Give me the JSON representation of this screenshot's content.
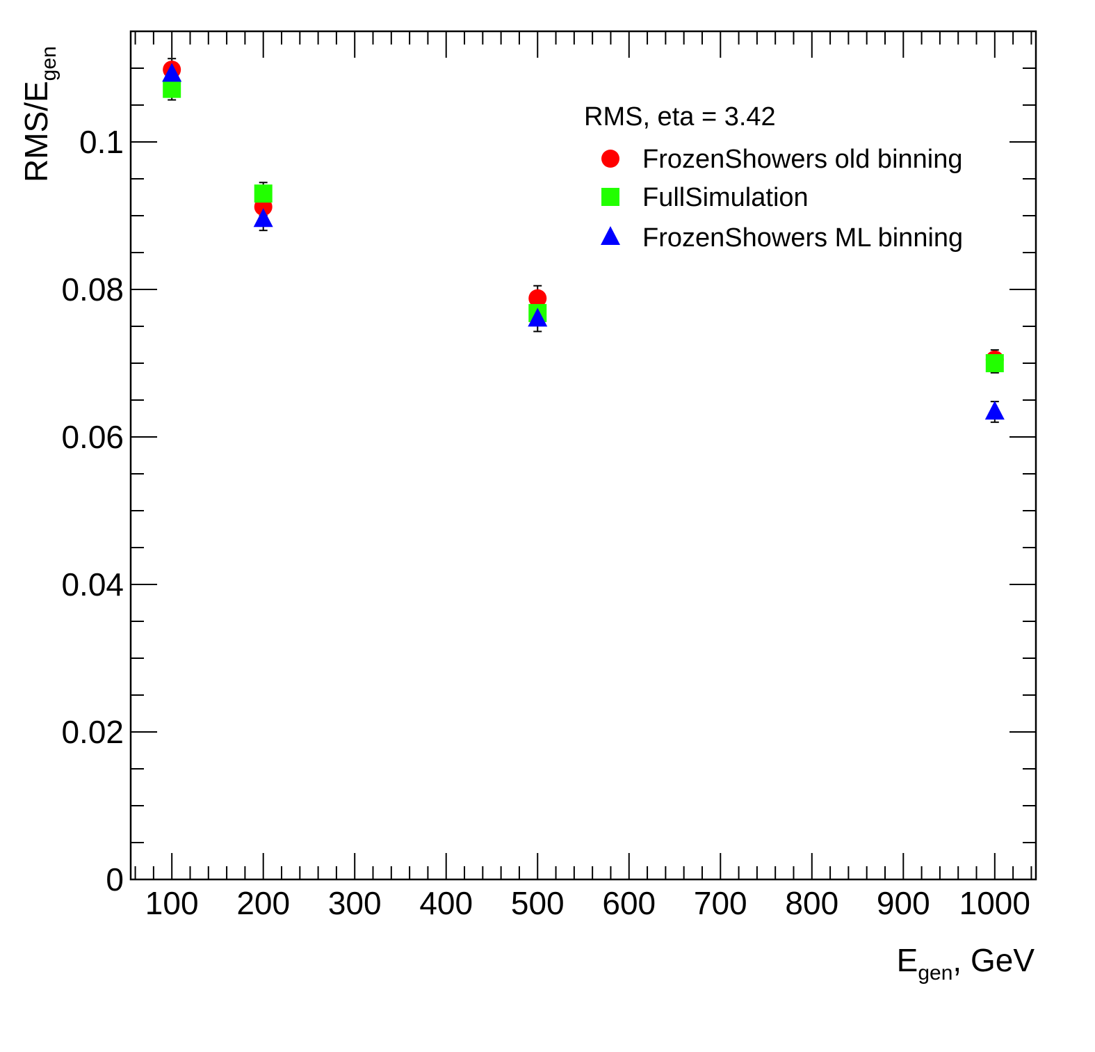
{
  "chart_data": {
    "type": "scatter",
    "xlabel": {
      "main": "E",
      "sub": "gen",
      "suffix": ", GeV"
    },
    "ylabel": {
      "main": "RMS/E",
      "sub": "gen"
    },
    "xlim": [
      55,
      1045
    ],
    "ylim": [
      0,
      0.115
    ],
    "x_ticks": [
      100,
      200,
      300,
      400,
      500,
      600,
      700,
      800,
      900,
      1000
    ],
    "x_tick_labels": [
      "100",
      "200",
      "300",
      "400",
      "500",
      "600",
      "700",
      "800",
      "900",
      "1000"
    ],
    "y_ticks": [
      0,
      0.02,
      0.04,
      0.06,
      0.08,
      0.1
    ],
    "y_tick_labels": [
      "0",
      "0.02",
      "0.04",
      "0.06",
      "0.08",
      "0.1"
    ],
    "grid": false,
    "legend": {
      "position": "top-right",
      "header": "RMS, eta = 3.42"
    },
    "series": [
      {
        "name": "FrozenShowers old binning",
        "marker": "circle",
        "color": "#ff0000",
        "x": [
          100,
          200,
          500,
          1000
        ],
        "y": [
          0.1098,
          0.0912,
          0.0788,
          0.0705
        ],
        "yerr": [
          0.0015,
          0.0012,
          0.0017,
          0.0013
        ]
      },
      {
        "name": "FullSimulation",
        "marker": "square",
        "color": "#22ff00",
        "x": [
          100,
          200,
          500,
          1000
        ],
        "y": [
          0.1072,
          0.093,
          0.0768,
          0.07
        ],
        "yerr": [
          0.0015,
          0.0015,
          0.0015,
          0.0013
        ]
      },
      {
        "name": "FrozenShowers ML binning",
        "marker": "triangle",
        "color": "#0000ff",
        "x": [
          100,
          200,
          500,
          1000
        ],
        "y": [
          0.1092,
          0.0895,
          0.076,
          0.0634
        ],
        "yerr": [
          0.0015,
          0.0015,
          0.0017,
          0.0014
        ]
      }
    ]
  }
}
